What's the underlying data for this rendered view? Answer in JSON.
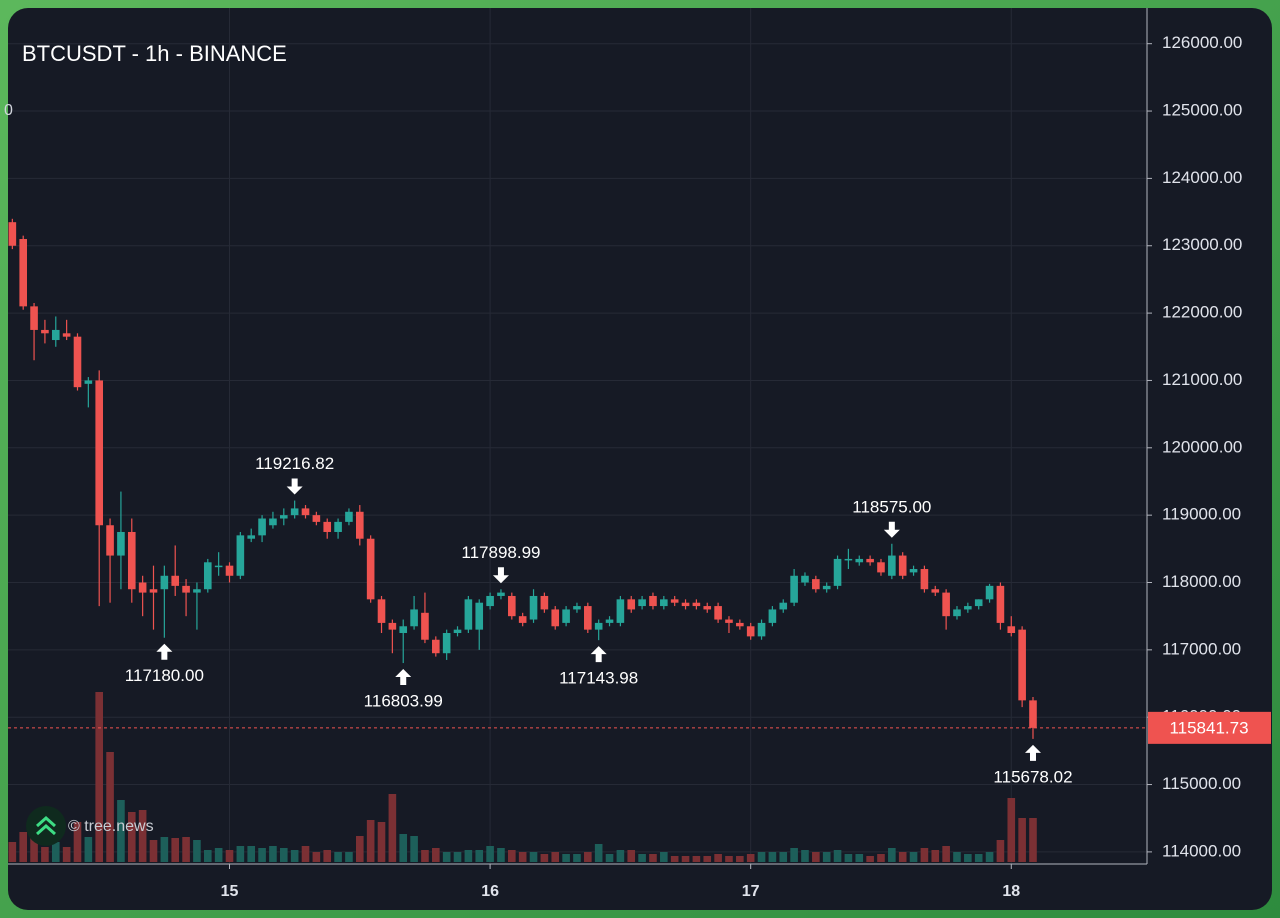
{
  "chart_data": {
    "type": "candlestick",
    "title": "BTCUSDT - 1h - BINANCE",
    "legend_fragment": "0",
    "watermark": "© tree.news",
    "up_color": "#26a69a",
    "down_color": "#ef5350",
    "volume_up_color": "#1d5f5a",
    "volume_down_color": "#7b3034",
    "grid": true,
    "xlim": [
      -0.4,
      104.5
    ],
    "xticks": [
      {
        "value": 20,
        "label": "15"
      },
      {
        "value": 44,
        "label": "16"
      },
      {
        "value": 68,
        "label": "17"
      },
      {
        "value": 92,
        "label": "18"
      }
    ],
    "ylim": [
      113850,
      126530
    ],
    "yticks": [
      {
        "value": 114000,
        "label": "114000.00"
      },
      {
        "value": 115000,
        "label": "115000.00"
      },
      {
        "value": 116000,
        "label": "116000.00"
      },
      {
        "value": 117000,
        "label": "117000.00"
      },
      {
        "value": 118000,
        "label": "118000.00"
      },
      {
        "value": 119000,
        "label": "119000.00"
      },
      {
        "value": 120000,
        "label": "120000.00"
      },
      {
        "value": 121000,
        "label": "121000.00"
      },
      {
        "value": 122000,
        "label": "122000.00"
      },
      {
        "value": 123000,
        "label": "123000.00"
      },
      {
        "value": 124000,
        "label": "124000.00"
      },
      {
        "value": 125000,
        "label": "125000.00"
      },
      {
        "value": 126000,
        "label": "126000.00"
      }
    ],
    "volume_lim": [
      0,
      170
    ],
    "candles": {
      "open": [
        123350,
        123100,
        122100,
        121750,
        121600,
        121700,
        121650,
        120950,
        121000,
        118850,
        118400,
        118750,
        118000,
        117900,
        117900,
        118100,
        117950,
        117850,
        117900,
        118250,
        118250,
        118100,
        118650,
        118700,
        118850,
        118950,
        119000,
        119100,
        119000,
        118900,
        118750,
        118900,
        119050,
        118650,
        117750,
        117400,
        117250,
        117350,
        117550,
        117150,
        116950,
        117250,
        117300,
        117300,
        117650,
        117800,
        117800,
        117500,
        117450,
        117800,
        117600,
        117400,
        117600,
        117650,
        117300,
        117400,
        117400,
        117750,
        117650,
        117800,
        117650,
        117750,
        117700,
        117700,
        117650,
        117650,
        117450,
        117400,
        117350,
        117200,
        117400,
        117600,
        117700,
        118000,
        118050,
        117900,
        117950,
        118350,
        118300,
        118350,
        118300,
        118100,
        118400,
        118150,
        118200,
        117900,
        117850,
        117500,
        117600,
        117650,
        117750,
        117950,
        117350,
        117300,
        116250
      ],
      "high": [
        123400,
        123150,
        122150,
        121900,
        121950,
        121900,
        121700,
        121050,
        121150,
        118950,
        119350,
        118950,
        118100,
        118250,
        118250,
        118550,
        118050,
        118000,
        118350,
        118450,
        118300,
        118750,
        118800,
        119000,
        119050,
        119100,
        119216.82,
        119150,
        119050,
        118950,
        118950,
        119100,
        119150,
        118700,
        117800,
        117450,
        117450,
        117800,
        117850,
        117200,
        117300,
        117350,
        117800,
        117750,
        117850,
        117898.99,
        117850,
        117550,
        117900,
        117850,
        117650,
        117650,
        117700,
        117700,
        117450,
        117500,
        117800,
        117800,
        117800,
        117850,
        117800,
        117800,
        117750,
        117750,
        117700,
        117700,
        117500,
        117450,
        117400,
        117450,
        117650,
        117750,
        118200,
        118150,
        118100,
        118000,
        118400,
        118500,
        118400,
        118400,
        118350,
        118575,
        118450,
        118250,
        118250,
        117950,
        117900,
        117650,
        117700,
        117750,
        117980,
        118000,
        117500,
        117350,
        116300
      ],
      "low": [
        122950,
        122050,
        121300,
        121550,
        121500,
        121600,
        120850,
        120600,
        117650,
        117700,
        117900,
        117700,
        117500,
        117300,
        117180,
        117800,
        117500,
        117300,
        117850,
        118100,
        118000,
        118050,
        118600,
        118600,
        118800,
        118850,
        118950,
        118950,
        118850,
        118650,
        118650,
        118850,
        118550,
        117700,
        117250,
        116950,
        116803.99,
        117300,
        117100,
        116900,
        116850,
        117200,
        117250,
        117000,
        117600,
        117750,
        117450,
        117350,
        117400,
        117550,
        117300,
        117350,
        117550,
        117250,
        117143.98,
        117350,
        117350,
        117550,
        117600,
        117600,
        117600,
        117650,
        117600,
        117600,
        117550,
        117400,
        117250,
        117300,
        117150,
        117150,
        117350,
        117550,
        117650,
        117950,
        117850,
        117850,
        117900,
        118200,
        118250,
        118250,
        118100,
        118050,
        118050,
        118100,
        117850,
        117800,
        117300,
        117450,
        117550,
        117600,
        117700,
        117300,
        117200,
        116150,
        115678.02
      ],
      "close": [
        123000,
        122100,
        121750,
        121700,
        121750,
        121650,
        120900,
        121000,
        118850,
        118400,
        118750,
        117900,
        117850,
        117850,
        118100,
        117950,
        117850,
        117900,
        118300,
        118250,
        118100,
        118700,
        118700,
        118950,
        118950,
        119000,
        119100,
        119000,
        118900,
        118750,
        118900,
        119050,
        118650,
        117750,
        117400,
        117300,
        117350,
        117600,
        117150,
        116950,
        117250,
        117300,
        117750,
        117700,
        117800,
        117850,
        117500,
        117400,
        117800,
        117600,
        117350,
        117600,
        117650,
        117300,
        117400,
        117450,
        117750,
        117600,
        117750,
        117650,
        117750,
        117700,
        117650,
        117650,
        117600,
        117450,
        117400,
        117350,
        117200,
        117400,
        117600,
        117700,
        118100,
        118100,
        117900,
        117950,
        118350,
        118350,
        118350,
        118300,
        118150,
        118400,
        118100,
        118200,
        117900,
        117850,
        117500,
        117600,
        117650,
        117750,
        117950,
        117400,
        117250,
        116250,
        115841.73
      ],
      "volume": [
        20,
        30,
        25,
        15,
        20,
        15,
        40,
        25,
        170,
        110,
        62,
        50,
        52,
        22,
        25,
        24,
        25,
        22,
        12,
        14,
        12,
        16,
        16,
        14,
        16,
        14,
        12,
        16,
        10,
        12,
        10,
        10,
        26,
        42,
        40,
        68,
        28,
        26,
        12,
        14,
        10,
        10,
        12,
        12,
        16,
        14,
        12,
        10,
        10,
        8,
        10,
        8,
        8,
        10,
        18,
        8,
        12,
        12,
        8,
        8,
        10,
        6,
        6,
        6,
        6,
        8,
        6,
        6,
        8,
        10,
        10,
        10,
        14,
        12,
        10,
        10,
        12,
        8,
        8,
        6,
        8,
        14,
        10,
        10,
        14,
        12,
        16,
        10,
        8,
        8,
        10,
        22,
        64,
        44,
        44
      ]
    },
    "last_price": 115841.73,
    "annotations": [
      {
        "at": 14,
        "kind": "low",
        "value": 117180,
        "label": "117180.00"
      },
      {
        "at": 26,
        "kind": "high",
        "value": 119216.82
      },
      {
        "at": 36,
        "kind": "low",
        "value": 116803.99
      },
      {
        "at": 45,
        "kind": "high",
        "value": 117898.99
      },
      {
        "at": 54,
        "kind": "low",
        "value": 117143.98
      },
      {
        "at": 81,
        "kind": "high",
        "value": 118575,
        "label": "118575.00"
      },
      {
        "at": 94,
        "kind": "low",
        "value": 115678.02
      }
    ]
  }
}
